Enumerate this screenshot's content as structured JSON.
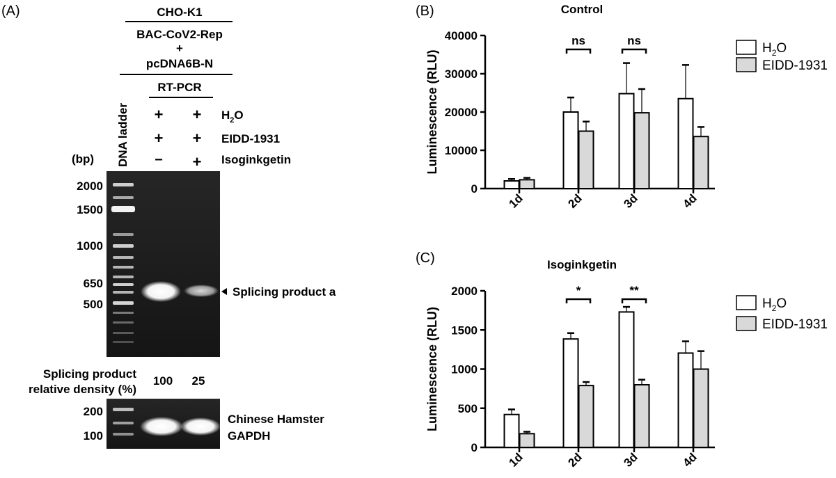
{
  "panel_a": {
    "label": "(A)",
    "header": {
      "cell_line": "CHO-K1",
      "construct_1": "BAC-CoV2-Rep",
      "plus": "+",
      "construct_2": "pcDNA6B-N",
      "assay": "RT-PCR"
    },
    "ladder_label": "DNA ladder",
    "bp_label": "(bp)",
    "conditions": [
      {
        "name": "H2O",
        "name_main": "H",
        "name_sub": "2",
        "name_tail": "O",
        "lane1": "+",
        "lane2": "+"
      },
      {
        "name": "EIDD-1931",
        "lane1": "+",
        "lane2": "+"
      },
      {
        "name": "Isoginkgetin",
        "lane1": "−",
        "lane2": "+"
      }
    ],
    "ladder_sizes": [
      "2000",
      "1500",
      "1000",
      "650",
      "500"
    ],
    "band_label": "Splicing product a",
    "density_label_1": "Splicing product",
    "density_label_2": "relative density (%)",
    "density_values": [
      "100",
      "25"
    ],
    "lower_ladder_sizes": [
      "200",
      "100"
    ],
    "lower_label_1": "Chinese Hamster",
    "lower_label_2": "GAPDH",
    "colors": {
      "gel_background": "#1c1c1c",
      "band": "#ffffff"
    }
  },
  "chart_data": [
    {
      "panel": "(B)",
      "type": "bar",
      "title": "Control",
      "ylabel": "Luminescence (RLU)",
      "xlabel": "",
      "categories": [
        "1d",
        "2d",
        "3d",
        "4d"
      ],
      "ylim": [
        0,
        40000
      ],
      "yticks": [
        "0",
        "10000",
        "20000",
        "30000",
        "40000"
      ],
      "series": [
        {
          "name": "H2O",
          "color": "#ffffff",
          "values": [
            2000,
            20000,
            24800,
            23500
          ],
          "errors": [
            500,
            3800,
            8000,
            8800
          ]
        },
        {
          "name": "EIDD-1931",
          "color": "#d9d9d9",
          "values": [
            2300,
            15000,
            19800,
            13600
          ],
          "errors": [
            500,
            2500,
            6200,
            2500
          ]
        }
      ],
      "annotations": [
        {
          "category": "2d",
          "text": "ns"
        },
        {
          "category": "3d",
          "text": "ns"
        }
      ],
      "legend_position": "right",
      "grid": false
    },
    {
      "panel": "(C)",
      "type": "bar",
      "title": "Isoginkgetin",
      "ylabel": "Luminescence (RLU)",
      "xlabel": "",
      "categories": [
        "1d",
        "2d",
        "3d",
        "4d"
      ],
      "ylim": [
        0,
        2000
      ],
      "yticks": [
        "0",
        "500",
        "1000",
        "1500",
        "2000"
      ],
      "series": [
        {
          "name": "H2O",
          "color": "#ffffff",
          "values": [
            420,
            1385,
            1730,
            1205
          ],
          "errors": [
            65,
            75,
            65,
            150
          ]
        },
        {
          "name": "EIDD-1931",
          "color": "#d9d9d9",
          "values": [
            175,
            790,
            800,
            1000
          ],
          "errors": [
            25,
            45,
            65,
            230
          ]
        }
      ],
      "annotations": [
        {
          "category": "2d",
          "text": "*"
        },
        {
          "category": "3d",
          "text": "**"
        }
      ],
      "legend_position": "right",
      "grid": false
    }
  ]
}
